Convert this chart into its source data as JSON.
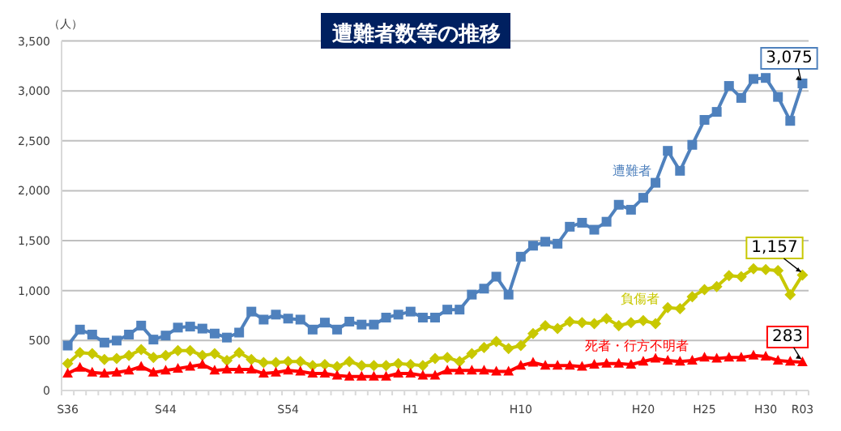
{
  "chart_data": {
    "type": "line",
    "title": "遭難者数等の推移",
    "ylabel": "（人）",
    "categories": [
      "S36",
      null,
      null,
      null,
      null,
      null,
      null,
      null,
      "S44",
      null,
      null,
      null,
      null,
      null,
      null,
      null,
      null,
      null,
      "S54",
      null,
      null,
      null,
      null,
      null,
      null,
      null,
      null,
      null,
      "H1",
      null,
      null,
      null,
      null,
      null,
      null,
      null,
      null,
      "H10",
      null,
      null,
      null,
      null,
      null,
      null,
      null,
      null,
      null,
      "H20",
      null,
      null,
      null,
      null,
      "H25",
      null,
      null,
      null,
      null,
      "H30",
      null,
      null,
      "R03"
    ],
    "series": [
      {
        "name": "遭難者",
        "color": "#4f81bd",
        "marker": "square",
        "values": [
          450,
          610,
          560,
          480,
          500,
          560,
          650,
          510,
          550,
          630,
          640,
          620,
          570,
          530,
          580,
          790,
          710,
          760,
          720,
          710,
          610,
          680,
          610,
          690,
          660,
          660,
          730,
          760,
          790,
          730,
          730,
          810,
          810,
          960,
          1020,
          1140,
          960,
          1340,
          1450,
          1490,
          1470,
          1640,
          1680,
          1610,
          1690,
          1860,
          1810,
          1930,
          2080,
          2400,
          2200,
          2460,
          2710,
          2790,
          3050,
          2930,
          3120,
          3130,
          2940,
          2700,
          3075
        ],
        "value_labels": [
          null,
          null,
          null,
          null,
          null,
          null,
          null,
          null,
          null,
          null,
          null,
          null,
          null,
          null,
          null,
          null,
          null,
          null,
          null,
          null,
          null,
          null,
          null,
          null,
          null,
          null,
          null,
          null,
          null,
          null,
          null,
          null,
          null,
          null,
          null,
          null,
          null,
          null,
          null,
          null,
          null,
          null,
          null,
          null,
          null,
          null,
          null,
          null,
          null,
          null,
          null,
          null,
          null,
          null,
          null,
          null,
          null,
          null,
          null,
          null,
          "3,075"
        ]
      },
      {
        "name": "負傷者",
        "color": "#c8c800",
        "marker": "diamond",
        "values": [
          270,
          380,
          370,
          310,
          320,
          350,
          410,
          330,
          350,
          400,
          400,
          350,
          370,
          300,
          380,
          310,
          280,
          280,
          290,
          290,
          250,
          260,
          240,
          290,
          250,
          250,
          250,
          270,
          260,
          250,
          320,
          330,
          290,
          370,
          430,
          490,
          420,
          450,
          570,
          650,
          620,
          690,
          680,
          670,
          720,
          650,
          680,
          700,
          670,
          830,
          820,
          940,
          1010,
          1040,
          1150,
          1140,
          1220,
          1210,
          1200,
          960,
          1157
        ],
        "value_labels": [
          null,
          null,
          null,
          null,
          null,
          null,
          null,
          null,
          null,
          null,
          null,
          null,
          null,
          null,
          null,
          null,
          null,
          null,
          null,
          null,
          null,
          null,
          null,
          null,
          null,
          null,
          null,
          null,
          null,
          null,
          null,
          null,
          null,
          null,
          null,
          null,
          null,
          null,
          null,
          null,
          null,
          null,
          null,
          null,
          null,
          null,
          null,
          null,
          null,
          null,
          null,
          null,
          null,
          null,
          null,
          null,
          null,
          null,
          null,
          null,
          "1,157"
        ]
      },
      {
        "name": "死者・行方不明者",
        "color": "#ff0000",
        "marker": "triangle",
        "values": [
          170,
          230,
          180,
          170,
          180,
          200,
          240,
          180,
          200,
          220,
          240,
          260,
          200,
          210,
          210,
          210,
          170,
          180,
          200,
          190,
          170,
          170,
          150,
          140,
          140,
          140,
          140,
          170,
          170,
          150,
          150,
          200,
          200,
          200,
          200,
          190,
          190,
          250,
          280,
          250,
          250,
          250,
          240,
          260,
          270,
          270,
          260,
          290,
          320,
          300,
          290,
          300,
          330,
          320,
          330,
          330,
          350,
          340,
          300,
          290,
          283
        ],
        "value_labels": [
          null,
          null,
          null,
          null,
          null,
          null,
          null,
          null,
          null,
          null,
          null,
          null,
          null,
          null,
          null,
          null,
          null,
          null,
          null,
          null,
          null,
          null,
          null,
          null,
          null,
          null,
          null,
          null,
          null,
          null,
          null,
          null,
          null,
          null,
          null,
          null,
          null,
          null,
          null,
          null,
          null,
          null,
          null,
          null,
          null,
          null,
          null,
          null,
          null,
          null,
          null,
          null,
          null,
          null,
          null,
          null,
          null,
          null,
          null,
          null,
          "283"
        ]
      }
    ],
    "ylim": [
      0,
      3500
    ],
    "yticks": [
      {
        "value": 0,
        "label": "0"
      },
      {
        "value": 500,
        "label": "500"
      },
      {
        "value": 1000,
        "label": "1,000"
      },
      {
        "value": 1500,
        "label": "1,500"
      },
      {
        "value": 2000,
        "label": "2,000"
      },
      {
        "value": 2500,
        "label": "2,500"
      },
      {
        "value": 3000,
        "label": "3,000"
      },
      {
        "value": 3500,
        "label": "3,500"
      }
    ],
    "grid": "y",
    "legend": false
  }
}
